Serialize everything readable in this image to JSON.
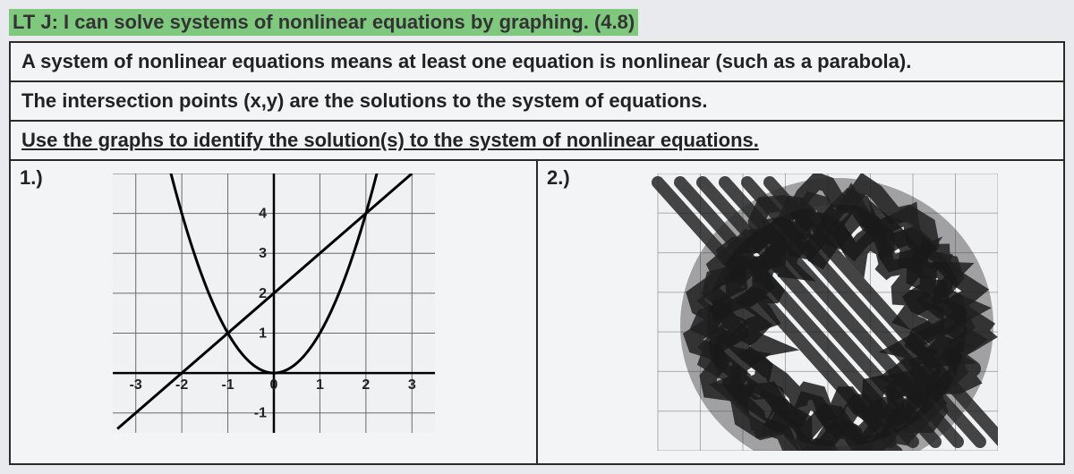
{
  "header": {
    "text": "LT J: I can solve systems of nonlinear equations by graphing. (4.8)",
    "highlight_color": "#7fc97f"
  },
  "rows": {
    "def": "A system of nonlinear equations means at least one equation is nonlinear (such as a parabola).",
    "intersect": "The intersection points (x,y) are the solutions to the system of equations.",
    "instruct": "Use the graphs to identify the solution(s) to the system of nonlinear equations."
  },
  "problems": {
    "p1": {
      "label": "1.)",
      "chart": {
        "type": "line+parabola",
        "xlim": [
          -3.5,
          3.5
        ],
        "ylim": [
          -1.5,
          5
        ],
        "xtick_labels": [
          "-3",
          "-2",
          "-1",
          "0",
          "1",
          "2",
          "3"
        ],
        "xtick_vals": [
          -3,
          -2,
          -1,
          0,
          1,
          2,
          3
        ],
        "ytick_labels": [
          "-1",
          "1",
          "2",
          "3",
          "4"
        ],
        "ytick_vals": [
          -1,
          1,
          2,
          3,
          4
        ],
        "grid_color": "#6b6b6b",
        "axis_color": "#000000",
        "background_color": "#f0f1f3",
        "curve_color": "#000000",
        "curve_width": 3,
        "label_fontsize": 16,
        "line": {
          "slope": 1,
          "intercept": 2
        },
        "parabola": {
          "a": 1,
          "vertex_x": 0,
          "vertex_y": 0
        }
      }
    },
    "p2": {
      "label": "2.)",
      "chart": {
        "type": "scribbled-out",
        "grid_color": "#6b6b6b",
        "background_color": "#f0f1f3",
        "xlim": [
          -3.5,
          3.5
        ],
        "ylim": [
          -1.5,
          5
        ]
      }
    }
  },
  "colors": {
    "page_bg": "#e8eaed",
    "cell_bg": "#f3f4f6",
    "border": "#2a2a2a",
    "text": "#222222"
  }
}
